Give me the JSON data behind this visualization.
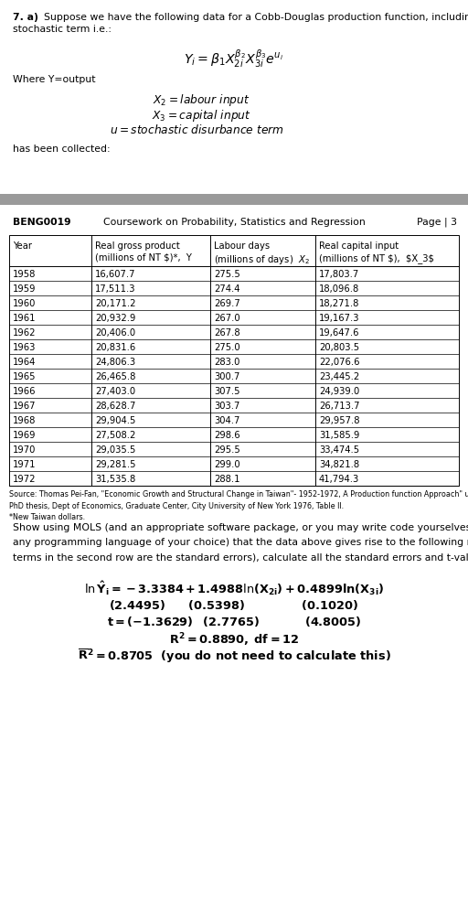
{
  "bg_color": "#ffffff",
  "header_bar_color": "#999999",
  "font_size": 7.8,
  "table_font": 7.2,
  "source_font": 5.8,
  "table_data": [
    [
      "1958",
      "16,607.7",
      "275.5",
      "17,803.7"
    ],
    [
      "1959",
      "17,511.3",
      "274.4",
      "18,096.8"
    ],
    [
      "1960",
      "20,171.2",
      "269.7",
      "18,271.8"
    ],
    [
      "1961",
      "20,932.9",
      "267.0",
      "19,167.3"
    ],
    [
      "1962",
      "20,406.0",
      "267.8",
      "19,647.6"
    ],
    [
      "1963",
      "20,831.6",
      "275.0",
      "20,803.5"
    ],
    [
      "1964",
      "24,806.3",
      "283.0",
      "22,076.6"
    ],
    [
      "1965",
      "26,465.8",
      "300.7",
      "23,445.2"
    ],
    [
      "1966",
      "27,403.0",
      "307.5",
      "24,939.0"
    ],
    [
      "1967",
      "28,628.7",
      "303.7",
      "26,713.7"
    ],
    [
      "1968",
      "29,904.5",
      "304.7",
      "29,957.8"
    ],
    [
      "1969",
      "27,508.2",
      "298.6",
      "31,585.9"
    ],
    [
      "1970",
      "29,035.5",
      "295.5",
      "33,474.5"
    ],
    [
      "1971",
      "29,281.5",
      "299.0",
      "34,821.8"
    ],
    [
      "1972",
      "31,535.8",
      "288.1",
      "41,794.3"
    ]
  ]
}
